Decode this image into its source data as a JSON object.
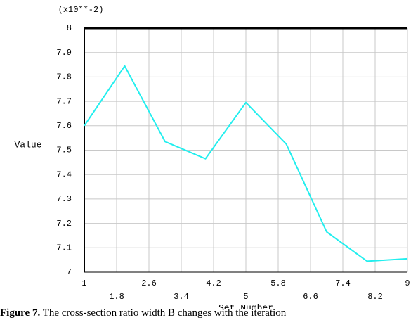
{
  "chart_data": {
    "type": "line",
    "scale_note": "(x10**-2)",
    "ylabel": "Value",
    "xlabel": "Set Number",
    "x": [
      1,
      2,
      3,
      4,
      5,
      6,
      7,
      8,
      9
    ],
    "series": [
      {
        "color": "#22eeee",
        "values": [
          7.6,
          7.845,
          7.535,
          7.465,
          7.695,
          7.525,
          7.165,
          7.045,
          7.055
        ]
      }
    ],
    "xlim": [
      1,
      9
    ],
    "ylim": [
      7,
      8
    ],
    "xticks": [
      1,
      1.8,
      2.6,
      3.4,
      4.2,
      5,
      5.8,
      6.6,
      7.4,
      8.2,
      9
    ],
    "yticks": [
      7,
      7.1,
      7.2,
      7.3,
      7.4,
      7.5,
      7.6,
      7.7,
      7.8,
      7.9,
      8
    ],
    "grid": true
  },
  "caption": {
    "label": "Figure 7.",
    "text": "The cross-section ratio width B changes with the iteration"
  }
}
